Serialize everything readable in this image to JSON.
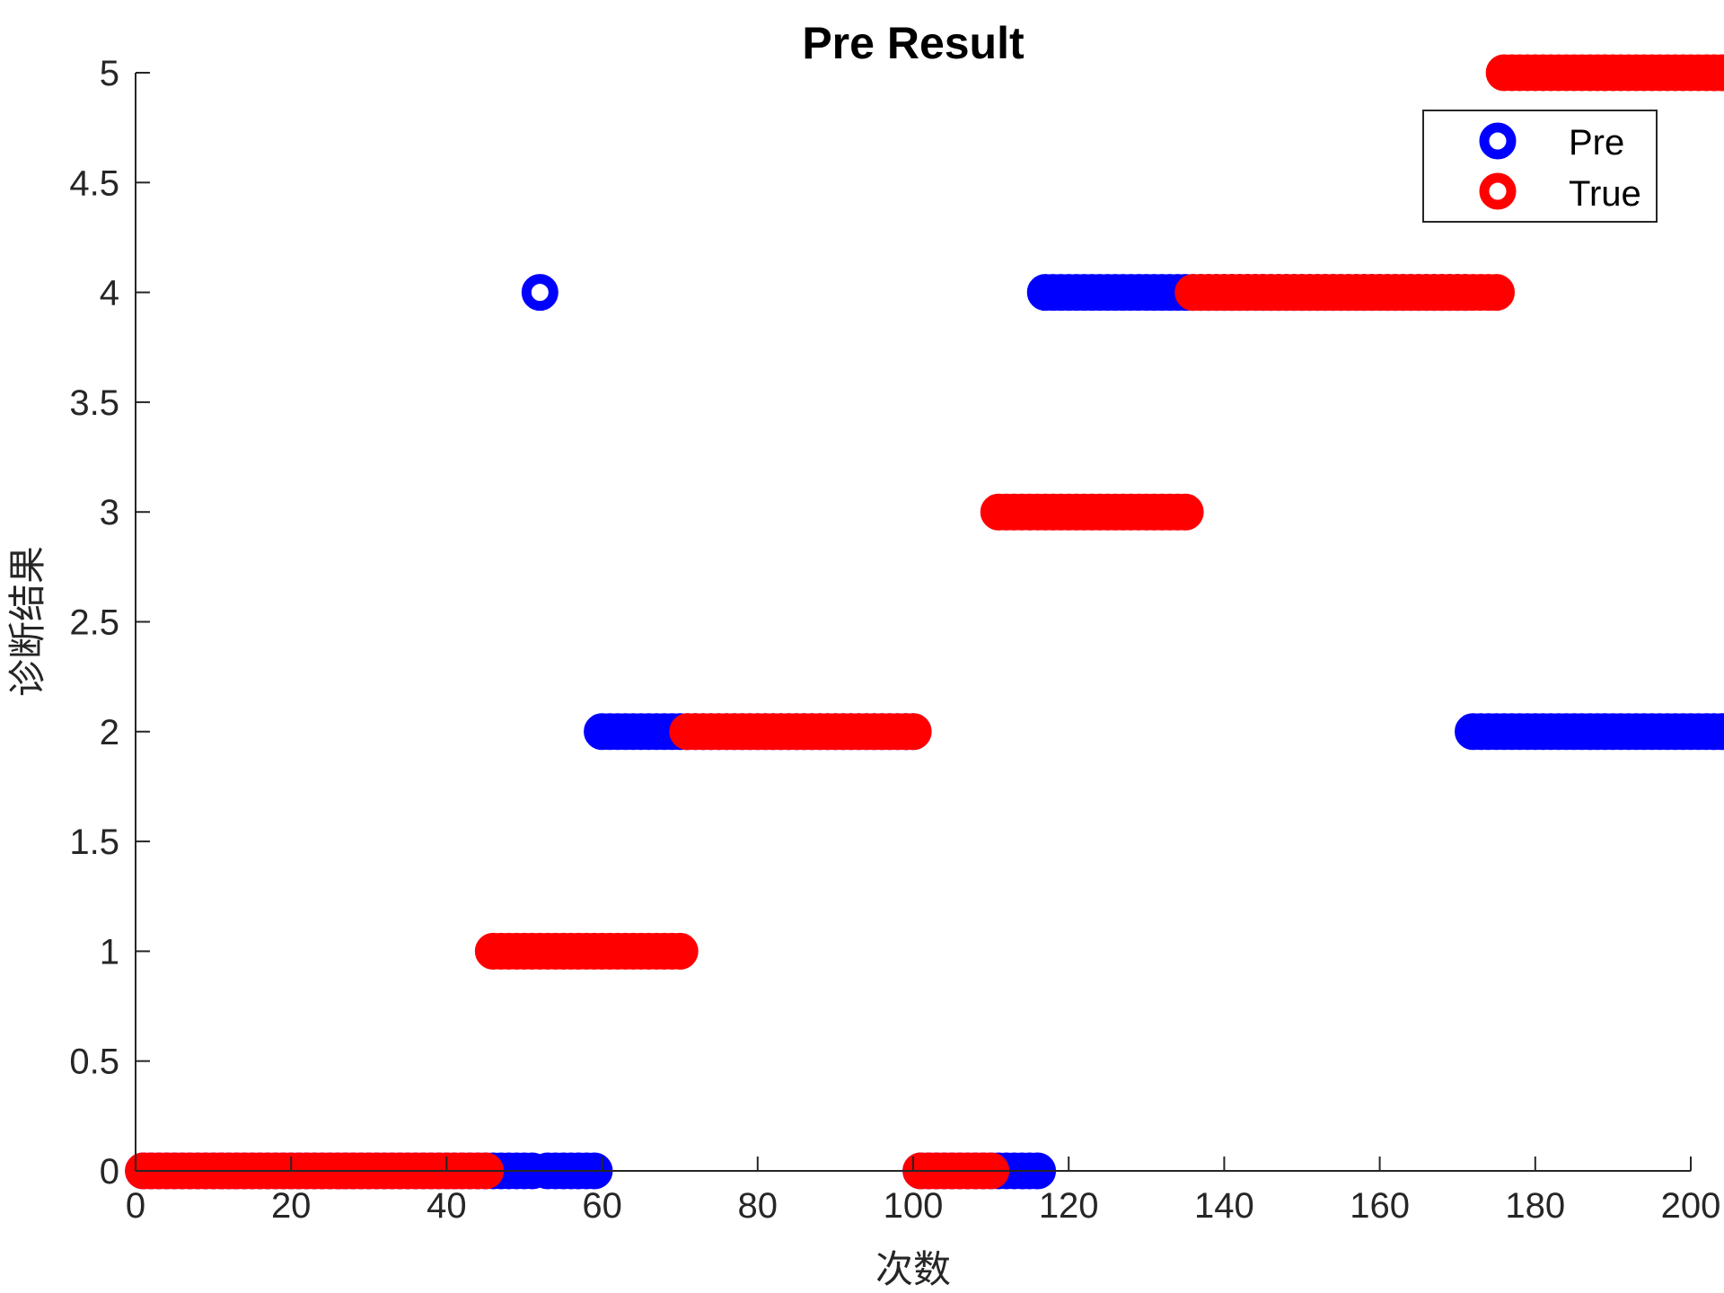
{
  "chart_data": {
    "type": "scatter",
    "title": "Pre Result",
    "xlabel": "次数",
    "ylabel": "诊断结果",
    "xlim": [
      0,
      200
    ],
    "ylim": [
      0,
      5
    ],
    "xticks": [
      0,
      20,
      40,
      60,
      80,
      100,
      120,
      140,
      160,
      180,
      200
    ],
    "yticks": [
      0,
      0.5,
      1,
      1.5,
      2,
      2.5,
      3,
      3.5,
      4,
      4.5,
      5
    ],
    "grid": false,
    "legend_position": "top-right",
    "series": [
      {
        "name": "Pre",
        "color": "#0000ff",
        "marker": "circle-open",
        "values": [
          0,
          0,
          0,
          0,
          0,
          0,
          0,
          0,
          0,
          0,
          0,
          0,
          0,
          0,
          0,
          0,
          0,
          0,
          0,
          0,
          0,
          0,
          0,
          0,
          0,
          0,
          0,
          0,
          0,
          0,
          0,
          0,
          0,
          0,
          0,
          0,
          0,
          0,
          0,
          0,
          0,
          0,
          0,
          0,
          0,
          0,
          0,
          0,
          0,
          0,
          0,
          4,
          0,
          0,
          0,
          0,
          0,
          0,
          0,
          2,
          2,
          2,
          2,
          2,
          2,
          2,
          2,
          2,
          2,
          2,
          2,
          2,
          2,
          2,
          2,
          2,
          2,
          2,
          2,
          2,
          2,
          2,
          2,
          2,
          2,
          2,
          2,
          2,
          2,
          2,
          2,
          2,
          2,
          2,
          2,
          2,
          2,
          2,
          2,
          2,
          0,
          0,
          0,
          0,
          0,
          0,
          0,
          0,
          0,
          0,
          0,
          0,
          0,
          0,
          0,
          0,
          4,
          4,
          4,
          4,
          4,
          4,
          4,
          4,
          4,
          4,
          4,
          4,
          4,
          4,
          4,
          4,
          4,
          4,
          4,
          4,
          4,
          4,
          4,
          4,
          4,
          4,
          4,
          4,
          4,
          4,
          4,
          4,
          4,
          4,
          4,
          4,
          4,
          4,
          4,
          4,
          4,
          4,
          4,
          4,
          4,
          4,
          4,
          4,
          4,
          4,
          4,
          4,
          4,
          4,
          4,
          2,
          2,
          2,
          2,
          2,
          2,
          2,
          2,
          2,
          2,
          2,
          2,
          2,
          2,
          2,
          2,
          2,
          2,
          2,
          2,
          2,
          2,
          2,
          2,
          2,
          2,
          2,
          2,
          2,
          2,
          2,
          2,
          2,
          2,
          2
        ]
      },
      {
        "name": "True",
        "color": "#ff0000",
        "marker": "circle-open",
        "values": [
          0,
          0,
          0,
          0,
          0,
          0,
          0,
          0,
          0,
          0,
          0,
          0,
          0,
          0,
          0,
          0,
          0,
          0,
          0,
          0,
          0,
          0,
          0,
          0,
          0,
          0,
          0,
          0,
          0,
          0,
          0,
          0,
          0,
          0,
          0,
          0,
          0,
          0,
          0,
          0,
          0,
          0,
          0,
          0,
          0,
          1,
          1,
          1,
          1,
          1,
          1,
          1,
          1,
          1,
          1,
          1,
          1,
          1,
          1,
          1,
          1,
          1,
          1,
          1,
          1,
          1,
          1,
          1,
          1,
          1,
          2,
          2,
          2,
          2,
          2,
          2,
          2,
          2,
          2,
          2,
          2,
          2,
          2,
          2,
          2,
          2,
          2,
          2,
          2,
          2,
          2,
          2,
          2,
          2,
          2,
          2,
          2,
          2,
          2,
          2,
          0,
          0,
          0,
          0,
          0,
          0,
          0,
          0,
          0,
          0,
          3,
          3,
          3,
          3,
          3,
          3,
          3,
          3,
          3,
          3,
          3,
          3,
          3,
          3,
          3,
          3,
          3,
          3,
          3,
          3,
          3,
          3,
          3,
          3,
          3,
          4,
          4,
          4,
          4,
          4,
          4,
          4,
          4,
          4,
          4,
          4,
          4,
          4,
          4,
          4,
          4,
          4,
          4,
          4,
          4,
          4,
          4,
          4,
          4,
          4,
          4,
          4,
          4,
          4,
          4,
          4,
          4,
          4,
          4,
          4,
          4,
          4,
          4,
          4,
          4,
          5,
          5,
          5,
          5,
          5,
          5,
          5,
          5,
          5,
          5,
          5,
          5,
          5,
          5,
          5,
          5,
          5,
          5,
          5,
          5,
          5,
          5,
          5,
          5,
          5,
          5,
          5,
          5,
          5,
          5,
          5,
          5,
          5,
          5,
          5
        ]
      }
    ]
  }
}
